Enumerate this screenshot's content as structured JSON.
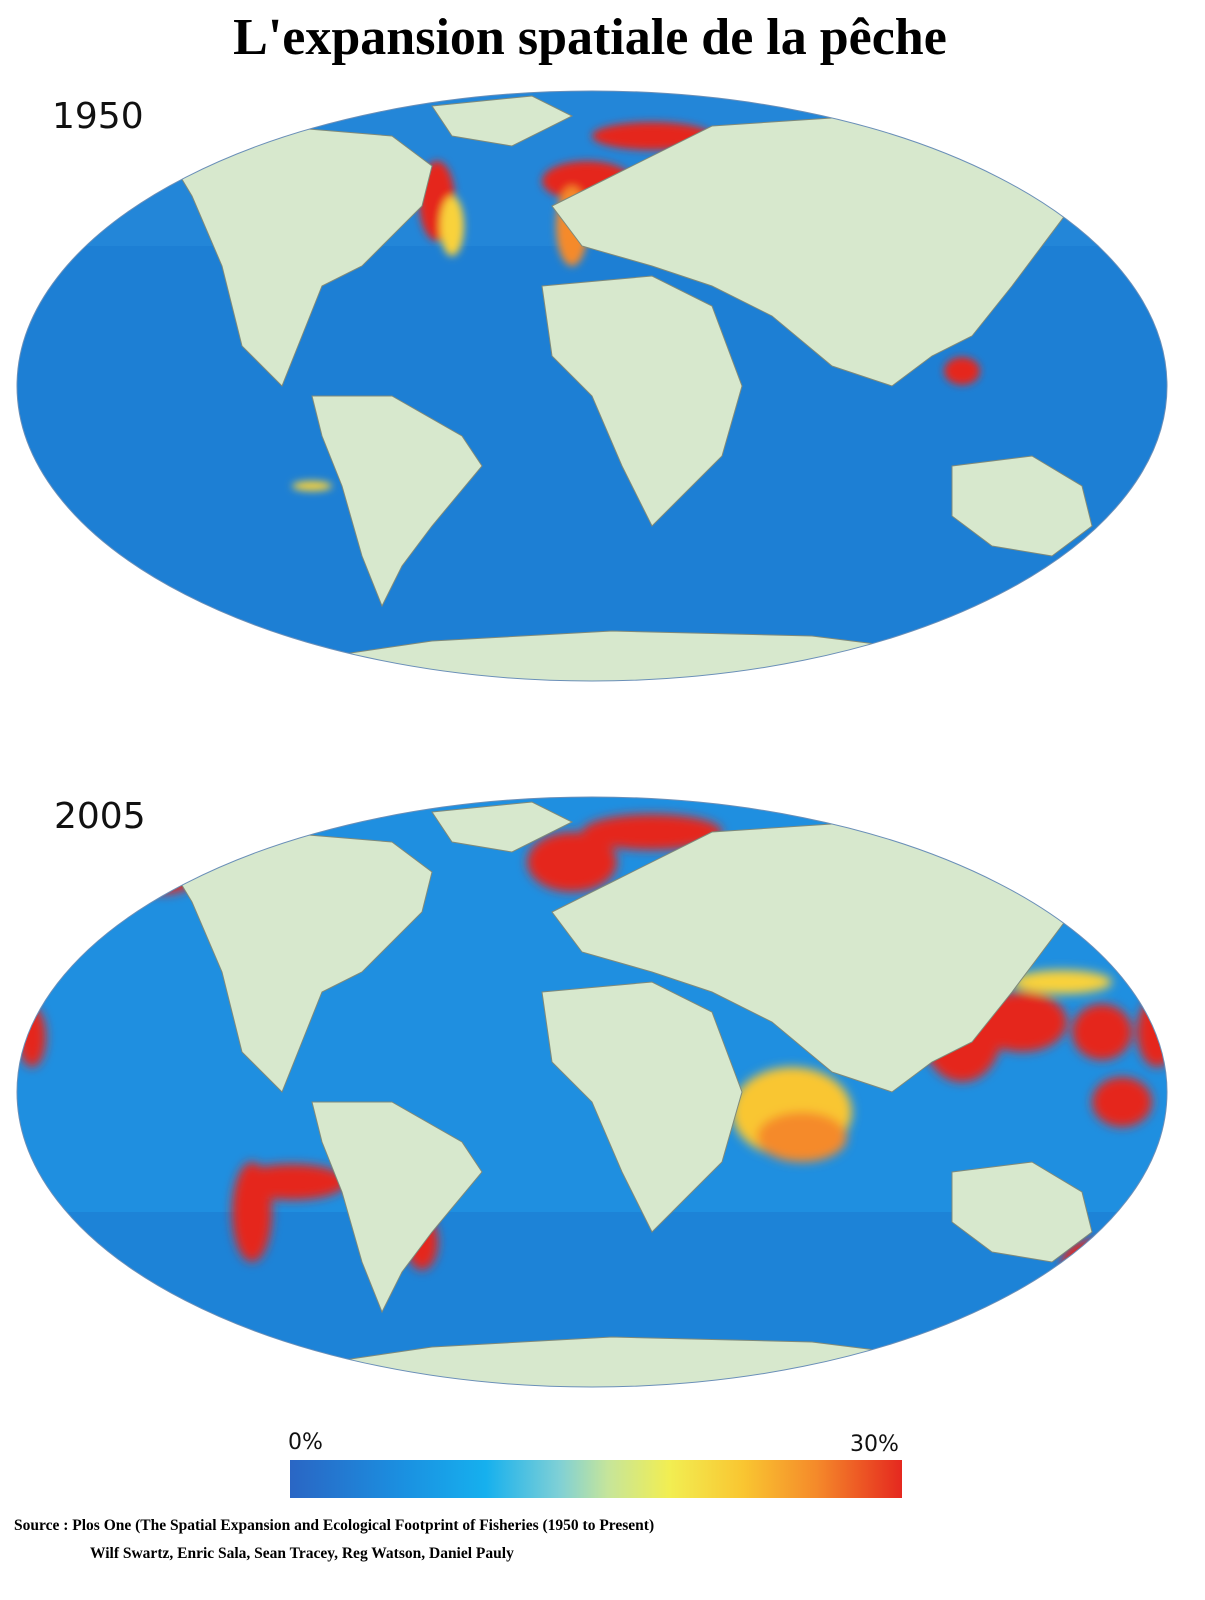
{
  "title": "L'expansion spatiale de la pêche",
  "maps": [
    {
      "year": "1950"
    },
    {
      "year": "2005"
    }
  ],
  "legend": {
    "min_label": "0%",
    "max_label": "30%",
    "min_value": 0,
    "max_value": 30,
    "colors": [
      "#2a66c4",
      "#16b0ee",
      "#f2ee52",
      "#f9c631",
      "#e5281f"
    ]
  },
  "source": {
    "line1_prefix": "Source : Plos One",
    "line1_title": "The Spatial Expansion and Ecological Footprint of Fisheries (1950",
    "line1_suffix": "to Present)",
    "line2": "Wilf Swartz, Enric Sala, Sean Tracey, Reg Watson, Daniel Pauly"
  },
  "colors": {
    "ocean": "#1d7fd4",
    "land": "#d7e8cd",
    "high": "#e5281f",
    "mid": "#f9d23a"
  }
}
